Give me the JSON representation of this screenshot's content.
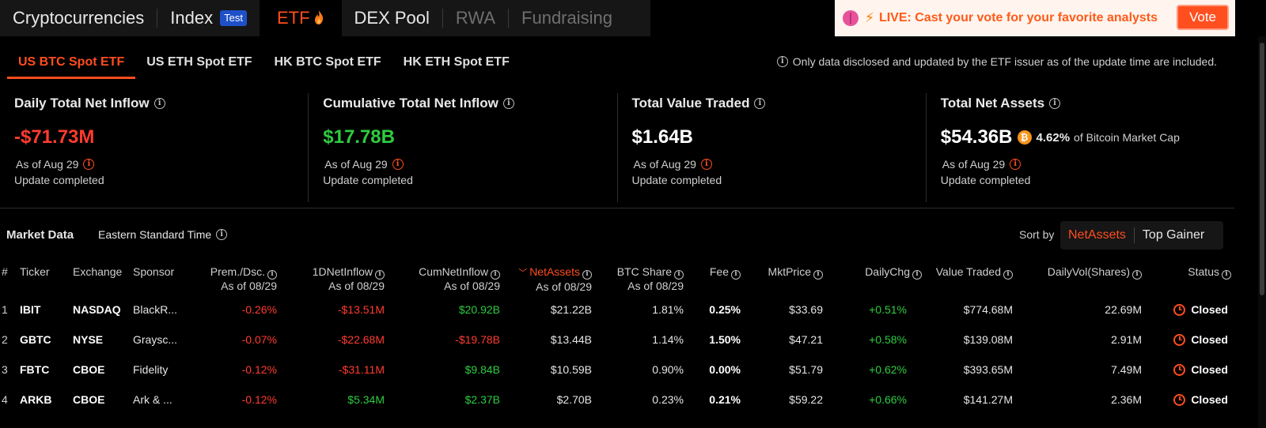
{
  "topnav": {
    "items": [
      {
        "label": "Cryptocurrencies"
      },
      {
        "label": "Index",
        "badge": "Test"
      },
      {
        "label": "ETF"
      },
      {
        "label": "DEX Pool"
      },
      {
        "label": "RWA"
      },
      {
        "label": "Fundraising"
      }
    ],
    "active": "ETF"
  },
  "live_banner": {
    "text": "LIVE: Cast your vote for your favorite analysts",
    "button": "Vote"
  },
  "subtabs": {
    "items": [
      "US BTC Spot ETF",
      "US ETH Spot ETF",
      "HK BTC Spot ETF",
      "HK ETH Spot ETF"
    ],
    "active": "US BTC Spot ETF",
    "note": "Only data disclosed and updated by the ETF issuer as of the update time are included."
  },
  "stats": [
    {
      "title": "Daily Total Net Inflow",
      "value": "-$71.73M",
      "asof": "As of Aug 29",
      "status": "Update completed"
    },
    {
      "title": "Cumulative Total Net Inflow",
      "value": "$17.78B",
      "asof": "As of Aug 29",
      "status": "Update completed"
    },
    {
      "title": "Total Value Traded",
      "value": "$1.64B",
      "asof": "As of Aug 29",
      "status": "Update completed"
    },
    {
      "title": "Total Net Assets",
      "value": "$54.36B",
      "mcap_pct": "4.62%",
      "mcap_label": "of Bitcoin Market Cap",
      "asof": "As of Aug 29",
      "status": "Update completed"
    }
  ],
  "market": {
    "title": "Market Data",
    "timezone": "Eastern Standard Time",
    "sort_label": "Sort by",
    "sort_options": [
      "NetAssets",
      "Top Gainer"
    ],
    "sort_active": "NetAssets"
  },
  "table": {
    "headers": {
      "idx": "#",
      "ticker": "Ticker",
      "exchange": "Exchange",
      "sponsor": "Sponsor",
      "prem": "Prem./Dsc.",
      "inflow": "1DNetInflow",
      "cum": "CumNetInflow",
      "assets": "NetAssets",
      "share": "BTC Share",
      "fee": "Fee",
      "price": "MktPrice",
      "chg": "DailyChg",
      "traded": "Value Traded",
      "vol": "DailyVol(Shares)",
      "status": "Status",
      "asof": "As of 08/29"
    },
    "rows": [
      {
        "idx": "1",
        "ticker": "IBIT",
        "exchange": "NASDAQ",
        "sponsor": "BlackR...",
        "prem": "-0.26%",
        "inflow": "-$13.51M",
        "cum": "$20.92B",
        "assets": "$21.22B",
        "share": "1.81%",
        "fee": "0.25%",
        "price": "$33.69",
        "chg": "+0.51%",
        "traded": "$774.68M",
        "vol": "22.69M",
        "status": "Closed"
      },
      {
        "idx": "2",
        "ticker": "GBTC",
        "exchange": "NYSE",
        "sponsor": "Graysc...",
        "prem": "-0.07%",
        "inflow": "-$22.68M",
        "cum": "-$19.78B",
        "assets": "$13.44B",
        "share": "1.14%",
        "fee": "1.50%",
        "price": "$47.21",
        "chg": "+0.58%",
        "traded": "$139.08M",
        "vol": "2.91M",
        "status": "Closed"
      },
      {
        "idx": "3",
        "ticker": "FBTC",
        "exchange": "CBOE",
        "sponsor": "Fidelity",
        "prem": "-0.12%",
        "inflow": "-$31.11M",
        "cum": "$9.84B",
        "assets": "$10.59B",
        "share": "0.90%",
        "fee": "0.00%",
        "price": "$51.79",
        "chg": "+0.62%",
        "traded": "$393.65M",
        "vol": "7.49M",
        "status": "Closed"
      },
      {
        "idx": "4",
        "ticker": "ARKB",
        "exchange": "CBOE",
        "sponsor": "Ark & ...",
        "prem": "-0.12%",
        "inflow": "$5.34M",
        "cum": "$2.37B",
        "assets": "$2.70B",
        "share": "0.23%",
        "fee": "0.21%",
        "price": "$59.22",
        "chg": "+0.66%",
        "traded": "$141.27M",
        "vol": "2.36M",
        "status": "Closed"
      }
    ]
  },
  "colors": {
    "accent": "#ff4d1f",
    "negative": "#ff3b30",
    "positive": "#2ecc40",
    "background": "#000000"
  }
}
